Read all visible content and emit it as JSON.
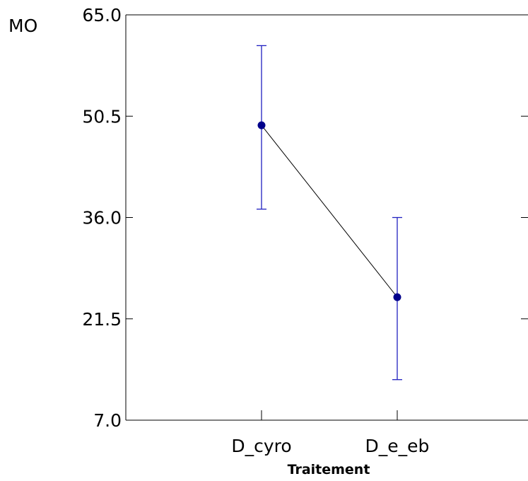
{
  "chart_data": {
    "type": "line",
    "title": "",
    "xlabel": "Traitement",
    "ylabel": "MO",
    "categories": [
      "D_cyro",
      "D_e_eb"
    ],
    "series": [
      {
        "values": [
          49.2,
          24.6
        ],
        "error_upper": [
          60.6,
          36.0
        ],
        "error_lower": [
          37.2,
          12.8
        ]
      }
    ],
    "ylim": [
      7.0,
      65.0
    ],
    "yticks": [
      "65.0",
      "50.5",
      "36.0",
      "21.5",
      "7.0"
    ],
    "grid": false,
    "colors": {
      "marker": "#00008B",
      "error_bar": "#2020C0",
      "line": "#000000",
      "axis": "#000000"
    }
  }
}
